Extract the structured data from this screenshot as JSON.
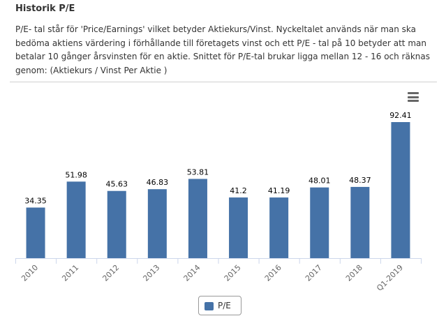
{
  "header": {
    "title": "Historik P/E",
    "description": "P/E- tal står för 'Price/Earnings' vilket betyder Aktiekurs/Vinst. Nyckeltalet används när man ska bedöma aktiens värdering i förhållande till företagets vinst och ett P/E - tal på 10 betyder att man betalar 10 gånger årsvinsten för en aktie. Snittet för P/E-tal brukar ligga mellan 12 - 16 och räknas genom: (Aktiekurs / Vinst Per Aktie )"
  },
  "menu_icon": "hamburger-menu-icon",
  "chart_data": {
    "type": "bar",
    "categories": [
      "2010",
      "2011",
      "2012",
      "2013",
      "2014",
      "2015",
      "2016",
      "2017",
      "2018",
      "Q1-2019"
    ],
    "series": [
      {
        "name": "P/E",
        "values": [
          34.35,
          51.98,
          45.63,
          46.83,
          53.81,
          41.2,
          41.19,
          48.01,
          48.37,
          92.41
        ],
        "labels": [
          "34.35",
          "51.98",
          "45.63",
          "46.83",
          "53.81",
          "41.2",
          "41.19",
          "48.01",
          "48.37",
          "92.41"
        ]
      }
    ],
    "ylim": [
      0,
      100
    ],
    "grid": false,
    "legend_position": "bottom-center",
    "bar_color": "#4572a7"
  },
  "legend": {
    "label": "P/E"
  }
}
